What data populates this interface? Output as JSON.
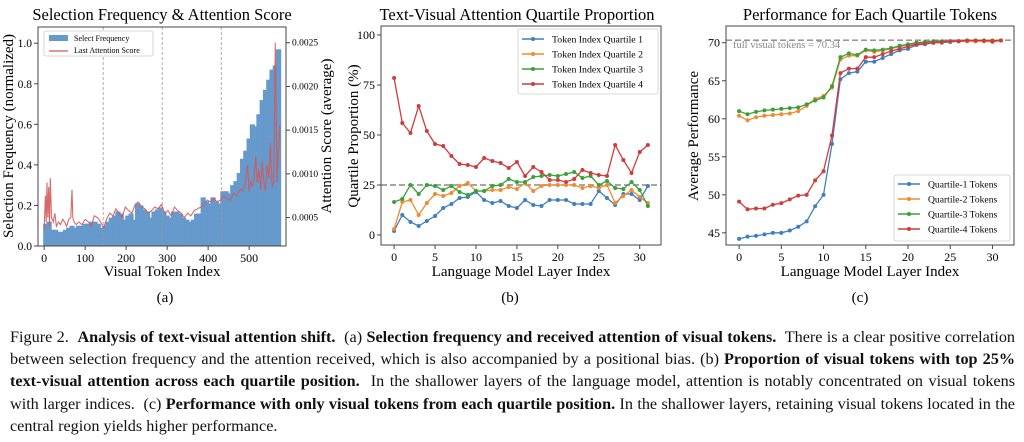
{
  "chart_data": [
    {
      "id": "a",
      "type": "bar",
      "title": "Selection Frequency & Attention Score",
      "xlabel": "Visual Token Index",
      "ylabel": "Selection Frequency (normalized)",
      "ylabel_right": "Attention Score (average)",
      "panel_label": "(a)",
      "xlim": [
        -15,
        590
      ],
      "ylim": [
        0,
        1.08
      ],
      "ylim_right": [
        0.000175,
        0.00268
      ],
      "xticks": [
        0,
        100,
        200,
        300,
        400,
        500
      ],
      "yticks": [
        0.0,
        0.2,
        0.4,
        0.6,
        0.8,
        1.0
      ],
      "ytick_labels": [
        "0.0",
        "0.2",
        "0.4",
        "0.6",
        "0.8",
        "1.0"
      ],
      "yticks_right": [
        0.0005,
        0.001,
        0.0015,
        0.002,
        0.0025
      ],
      "ytick_labels_right": [
        "0.0005",
        "0.0010",
        "0.0015",
        "0.0020",
        "0.0025"
      ],
      "vlines": [
        144,
        288,
        432
      ],
      "legend": {
        "placement": "top-left",
        "entries": [
          "Select Frequency",
          "Last Attention Score"
        ]
      },
      "colors": {
        "bars": "#6699cc",
        "line": "#d05a5a"
      },
      "series": [
        {
          "name": "Select Frequency",
          "x": [
            4,
            12,
            20,
            28,
            36,
            44,
            52,
            60,
            68,
            76,
            84,
            92,
            100,
            108,
            116,
            124,
            132,
            140,
            148,
            156,
            164,
            172,
            180,
            188,
            196,
            204,
            212,
            220,
            228,
            236,
            244,
            252,
            260,
            268,
            276,
            284,
            292,
            300,
            308,
            316,
            324,
            332,
            340,
            348,
            356,
            364,
            372,
            380,
            388,
            396,
            404,
            412,
            420,
            428,
            436,
            444,
            452,
            460,
            468,
            476,
            484,
            492,
            500,
            508,
            516,
            524,
            532,
            540,
            548,
            556,
            564,
            572
          ],
          "values": [
            0.11,
            0.12,
            0.08,
            0.08,
            0.07,
            0.07,
            0.08,
            0.09,
            0.1,
            0.09,
            0.1,
            0.1,
            0.11,
            0.11,
            0.12,
            0.12,
            0.11,
            0.09,
            0.1,
            0.12,
            0.14,
            0.15,
            0.17,
            0.16,
            0.13,
            0.15,
            0.16,
            0.13,
            0.21,
            0.2,
            0.18,
            0.17,
            0.14,
            0.17,
            0.18,
            0.19,
            0.17,
            0.15,
            0.14,
            0.17,
            0.17,
            0.16,
            0.14,
            0.13,
            0.12,
            0.13,
            0.16,
            0.16,
            0.24,
            0.22,
            0.21,
            0.24,
            0.22,
            0.21,
            0.27,
            0.27,
            0.26,
            0.3,
            0.32,
            0.36,
            0.43,
            0.47,
            0.53,
            0.6,
            0.59,
            0.65,
            0.72,
            0.77,
            0.82,
            0.87,
            0.89,
            0.97
          ]
        },
        {
          "name": "Last Attention Score",
          "x": [
            0,
            3,
            5,
            7,
            9,
            11,
            13,
            15,
            18,
            22,
            26,
            30,
            35,
            40,
            45,
            50,
            55,
            60,
            65,
            68,
            70,
            73,
            78,
            85,
            92,
            100,
            108,
            115,
            122,
            130,
            138,
            145,
            152,
            160,
            168,
            175,
            182,
            190,
            198,
            206,
            214,
            222,
            230,
            238,
            246,
            254,
            262,
            270,
            278,
            286,
            294,
            302,
            310,
            318,
            326,
            334,
            342,
            350,
            358,
            366,
            374,
            382,
            390,
            398,
            406,
            414,
            422,
            430,
            438,
            446,
            454,
            462,
            470,
            478,
            484,
            490,
            496,
            500,
            504,
            508,
            512,
            516,
            520,
            524,
            528,
            532,
            536,
            540,
            544,
            548,
            552,
            556,
            560,
            564,
            568,
            572,
            575
          ],
          "values": [
            0.00035,
            0.00075,
            0.00045,
            0.0009,
            0.0005,
            0.00085,
            0.0004,
            0.00095,
            0.0005,
            0.00045,
            0.00055,
            0.0004,
            0.00045,
            0.00042,
            0.00048,
            0.00045,
            0.0004,
            0.00048,
            0.0005,
            0.00082,
            0.0005,
            0.00045,
            0.00042,
            0.00045,
            0.00042,
            0.00048,
            0.00045,
            0.0004,
            0.00052,
            0.0005,
            0.00045,
            0.00038,
            0.00048,
            0.00055,
            0.00052,
            0.0006,
            0.00055,
            0.0005,
            0.00062,
            0.00058,
            0.00055,
            0.00065,
            0.00068,
            0.00062,
            0.0006,
            0.00055,
            0.00058,
            0.00062,
            0.0006,
            0.00065,
            0.00055,
            0.00058,
            0.00052,
            0.00062,
            0.00058,
            0.00055,
            0.0005,
            0.00055,
            0.00052,
            0.00058,
            0.0006,
            0.00062,
            0.00065,
            0.0007,
            0.00068,
            0.00072,
            0.00068,
            0.0007,
            0.00075,
            0.00072,
            0.0007,
            0.00078,
            0.00075,
            0.00082,
            0.0008,
            0.00088,
            0.0011,
            0.0008,
            0.00092,
            0.00085,
            0.00095,
            0.0012,
            0.0009,
            0.00105,
            0.00082,
            0.00115,
            0.0009,
            0.0008,
            0.0011,
            0.00095,
            0.00135,
            0.00085,
            0.0009,
            0.0025,
            0.0009,
            0.0013,
            0.00155
          ]
        }
      ]
    },
    {
      "id": "b",
      "type": "line",
      "title": "Text-Visual Attention Quartile Proportion",
      "xlabel": "Language Model Layer Index",
      "ylabel": "Quartile Proportion (%)",
      "panel_label": "(b)",
      "xlim": [
        -1.6,
        32.6
      ],
      "ylim": [
        -5,
        104.5
      ],
      "xticks": [
        0,
        5,
        10,
        15,
        20,
        25,
        30
      ],
      "yticks": [
        0,
        25,
        50,
        75,
        100
      ],
      "hline": 25,
      "legend": {
        "placement": "top-right",
        "entries": [
          "Token Index Quartile 1",
          "Token Index Quartile 2",
          "Token Index Quartile 3",
          "Token Index Quartile 4"
        ]
      },
      "x": [
        0,
        1,
        2,
        3,
        4,
        5,
        6,
        7,
        8,
        9,
        10,
        11,
        12,
        13,
        14,
        15,
        16,
        17,
        18,
        19,
        20,
        21,
        22,
        23,
        24,
        25,
        26,
        27,
        28,
        29,
        30,
        31
      ],
      "series": [
        {
          "name": "Token Index Quartile 1",
          "color": "#3f7fbf",
          "values": [
            2,
            10,
            6.5,
            4.5,
            7,
            9.5,
            13.5,
            15.5,
            18.5,
            19,
            21.5,
            17.5,
            16,
            17,
            14.5,
            13.5,
            17.5,
            15,
            14.5,
            17.5,
            17.5,
            17.5,
            15.5,
            15.5,
            15.5,
            22,
            18.5,
            15,
            20.5,
            20.5,
            17.5,
            24.5
          ]
        },
        {
          "name": "Token Index Quartile 2",
          "color": "#f28a30",
          "values": [
            3,
            16.5,
            17.5,
            10,
            16,
            20.5,
            19.5,
            21,
            24.5,
            26,
            22,
            22,
            22.5,
            22.5,
            24,
            23,
            26,
            22,
            24.5,
            25,
            25,
            25,
            25,
            23.5,
            24.5,
            23.5,
            25,
            16,
            19.5,
            22.5,
            19,
            16
          ]
        },
        {
          "name": "Token Index Quartile 3",
          "color": "#3aa03a",
          "values": [
            16.5,
            18,
            25,
            20.5,
            25,
            24.5,
            22.5,
            24.5,
            21.5,
            20,
            22,
            22,
            24.5,
            25,
            28,
            26.5,
            26.5,
            29,
            29.5,
            30,
            29.5,
            30.5,
            31.5,
            28.5,
            29.5,
            25,
            27,
            23.5,
            23,
            26.5,
            22.5,
            14.5
          ]
        },
        {
          "name": "Token Index Quartile 4",
          "color": "#d03c3c",
          "values": [
            78.5,
            56,
            51,
            64.5,
            52,
            45.5,
            44.5,
            39.5,
            35.5,
            35,
            34,
            38.5,
            37,
            36,
            33.5,
            36.5,
            29.5,
            34,
            31.5,
            27.5,
            27.5,
            26.5,
            28,
            32.5,
            31,
            30,
            29.5,
            45,
            37.5,
            31,
            41.5,
            45
          ]
        }
      ]
    },
    {
      "id": "c",
      "type": "line",
      "title": "Performance for Each Quartile Tokens",
      "xlabel": "Language Model Layer Index",
      "ylabel": "Average Performance",
      "panel_label": "(c)",
      "xlim": [
        -1.55,
        32.55
      ],
      "ylim": [
        43.4,
        72.2
      ],
      "xticks": [
        0,
        5,
        10,
        15,
        20,
        25,
        30
      ],
      "yticks": [
        45,
        50,
        55,
        60,
        65,
        70
      ],
      "hline": 70.34,
      "annotation": "full visual tokens = 70.34",
      "legend": {
        "placement": "bottom-right",
        "entries": [
          "Quartile-1 Tokens",
          "Quartile-2 Tokens",
          "Quartile-3 Tokens",
          "Quartile-4 Tokens"
        ]
      },
      "x": [
        0,
        1,
        2,
        3,
        4,
        5,
        6,
        7,
        8,
        9,
        10,
        11,
        12,
        13,
        14,
        15,
        16,
        17,
        18,
        19,
        20,
        21,
        22,
        23,
        24,
        25,
        26,
        27,
        28,
        29,
        30,
        31
      ],
      "series": [
        {
          "name": "Quartile-1 Tokens",
          "color": "#3f7fbf",
          "values": [
            44.2,
            44.5,
            44.6,
            44.8,
            45,
            45,
            45.3,
            45.8,
            46.5,
            48.5,
            50,
            56.7,
            65.2,
            66,
            66.2,
            67.5,
            67.5,
            68,
            68.5,
            69,
            69.2,
            69.7,
            69.8,
            70,
            70,
            70.1,
            70.2,
            70.2,
            70.2,
            70.2,
            70.2,
            70.3
          ]
        },
        {
          "name": "Quartile-2 Tokens",
          "color": "#f28a30",
          "values": [
            60.4,
            59.8,
            60.2,
            60.4,
            60.5,
            60.6,
            60.7,
            61,
            61.7,
            62.6,
            63,
            64.1,
            67.8,
            68.3,
            68.3,
            69,
            68.8,
            69,
            69.2,
            69.5,
            69.7,
            69.9,
            70,
            70.1,
            70.1,
            70.2,
            70.2,
            70.2,
            70.2,
            70.2,
            70.1,
            70.3
          ]
        },
        {
          "name": "Quartile-3 Tokens",
          "color": "#3aa03a",
          "values": [
            61,
            60.6,
            60.9,
            61.1,
            61.2,
            61.3,
            61.4,
            61.5,
            61.9,
            62.4,
            62.8,
            64.3,
            68.1,
            68.6,
            68.4,
            69.1,
            69,
            69.1,
            69.3,
            69.6,
            69.8,
            70,
            70.1,
            70.2,
            70.2,
            70.2,
            70.2,
            70.3,
            70.3,
            70.3,
            70.3,
            70.3
          ]
        },
        {
          "name": "Quartile-4 Tokens",
          "color": "#d03c3c",
          "values": [
            49.1,
            48.1,
            48.2,
            48.2,
            48.7,
            48.9,
            49.4,
            49.9,
            50,
            51.9,
            53.1,
            57.8,
            66,
            66.6,
            66.6,
            68.1,
            68.1,
            68.5,
            68.9,
            69.2,
            69.5,
            69.8,
            69.9,
            70,
            70.1,
            70.2,
            70.2,
            70.3,
            70.3,
            70.3,
            70.2,
            70.3
          ]
        }
      ]
    }
  ],
  "caption": {
    "figure_label": "Figure 2.",
    "title": "Analysis of text-visual attention shift.",
    "part_a_label": "(a)",
    "part_a_bold": "Selection frequency and received attention of visual tokens.",
    "part_a_text": "There is a clear positive correlation between selection frequency and the attention received, which is also accompanied by a positional bias.",
    "part_b_label": "(b)",
    "part_b_bold": "Proportion of visual tokens with top 25% text-visual attention across each quartile position.",
    "part_b_text": "In the shallower layers of the language model, attention is notably concentrated on visual tokens with larger indices.",
    "part_c_label": "(c)",
    "part_c_bold": "Performance with only visual tokens from each quartile position.",
    "part_c_text": "In the shallower layers, retaining visual tokens located in the central region yields higher performance."
  }
}
